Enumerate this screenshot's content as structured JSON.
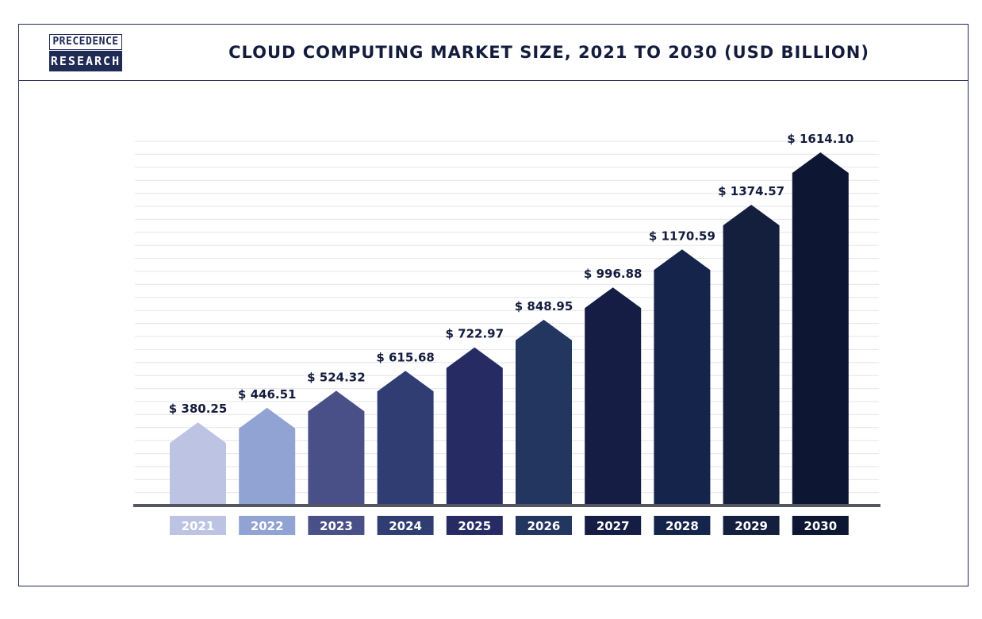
{
  "logo": {
    "line1": "PRECEDENCE",
    "line2": "RESEARCH"
  },
  "chart_data": {
    "type": "bar",
    "title": "CLOUD COMPUTING MARKET SIZE, 2021 TO 2030 (USD BILLION)",
    "categories": [
      "2021",
      "2022",
      "2023",
      "2024",
      "2025",
      "2026",
      "2027",
      "2028",
      "2029",
      "2030"
    ],
    "values": [
      380.25,
      446.51,
      524.32,
      615.68,
      722.97,
      848.95,
      996.88,
      1170.59,
      1374.57,
      1614.1
    ],
    "value_labels": [
      "$ 380.25",
      "$ 446.51",
      "$ 524.32",
      "$ 615.68",
      "$ 722.97",
      "$ 848.95",
      "$ 996.88",
      "$ 1170.59",
      "$ 1374.57",
      "$ 1614.10"
    ],
    "colors": [
      "#bdc3e2",
      "#90a3d2",
      "#495087",
      "#2f3d73",
      "#262c63",
      "#22365f",
      "#151d45",
      "#15244a",
      "#141f3e",
      "#0d1632"
    ],
    "baseline_color": "#55575e",
    "grid": true,
    "xlabel": "",
    "ylabel": ""
  }
}
